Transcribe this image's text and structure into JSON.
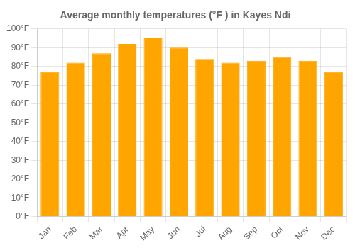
{
  "chart_data": {
    "type": "bar",
    "title": "Average monthly temperatures (°F ) in Kayes Ndi",
    "categories": [
      "Jan",
      "Feb",
      "Mar",
      "Apr",
      "May",
      "Jun",
      "Jul",
      "Aug",
      "Sep",
      "Oct",
      "Nov",
      "Dec"
    ],
    "values": [
      77,
      82,
      87,
      92,
      95,
      90,
      84,
      82,
      83,
      85,
      83,
      77
    ],
    "color": "#FFA500",
    "ylim": [
      0,
      100
    ],
    "yticks": [
      {
        "value": 0,
        "label": "0°F"
      },
      {
        "value": 10,
        "label": "10°F"
      },
      {
        "value": 20,
        "label": "20°F"
      },
      {
        "value": 30,
        "label": "30°F"
      },
      {
        "value": 40,
        "label": "40°F"
      },
      {
        "value": 50,
        "label": "50°F"
      },
      {
        "value": 60,
        "label": "60°F"
      },
      {
        "value": 70,
        "label": "70°F"
      },
      {
        "value": 80,
        "label": "80°F"
      },
      {
        "value": 90,
        "label": "90°F"
      },
      {
        "value": 100,
        "label": "100°F"
      }
    ],
    "grid": true
  }
}
